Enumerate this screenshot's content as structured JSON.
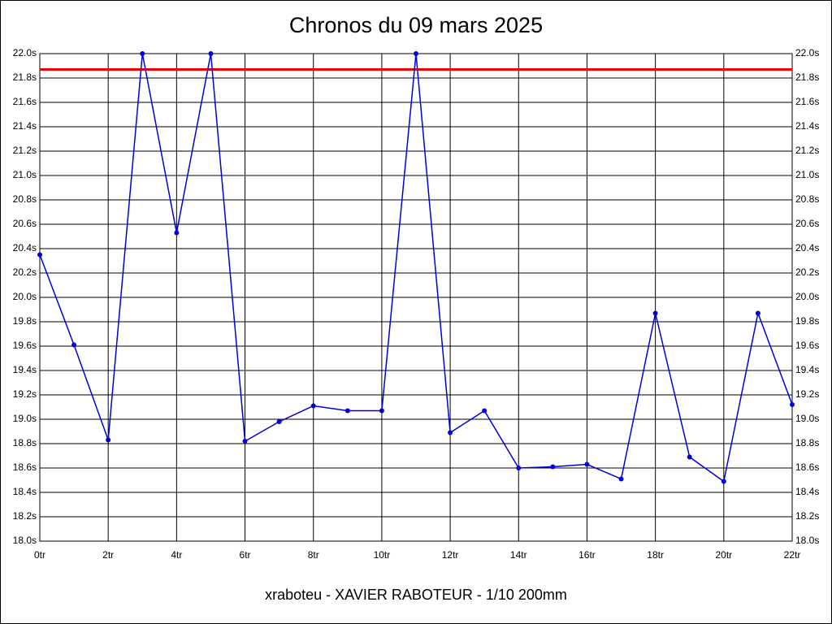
{
  "chart_data": {
    "type": "line",
    "title": "Chronos du 09 mars 2025",
    "caption": "xraboteu - XAVIER RABOTEUR - 1/10 200mm",
    "x": [
      0,
      1,
      2,
      3,
      4,
      5,
      6,
      7,
      8,
      9,
      10,
      11,
      12,
      13,
      14,
      15,
      16,
      17,
      18,
      19,
      20,
      21,
      22
    ],
    "values": [
      20.35,
      19.61,
      18.83,
      22.0,
      20.53,
      22.0,
      18.82,
      18.98,
      19.11,
      19.07,
      19.07,
      22.0,
      18.89,
      19.07,
      18.6,
      18.61,
      18.63,
      18.51,
      19.87,
      18.69,
      18.49,
      19.87,
      19.12
    ],
    "color": "#0000dd",
    "reference_line": {
      "value": 21.87,
      "color": "#ee0000"
    },
    "xlim": [
      0,
      22
    ],
    "xticks": [
      {
        "value": 0,
        "label": "0tr"
      },
      {
        "value": 2,
        "label": "2tr"
      },
      {
        "value": 4,
        "label": "4tr"
      },
      {
        "value": 6,
        "label": "6tr"
      },
      {
        "value": 8,
        "label": "8tr"
      },
      {
        "value": 10,
        "label": "10tr"
      },
      {
        "value": 12,
        "label": "12tr"
      },
      {
        "value": 14,
        "label": "14tr"
      },
      {
        "value": 16,
        "label": "16tr"
      },
      {
        "value": 18,
        "label": "18tr"
      },
      {
        "value": 20,
        "label": "20tr"
      },
      {
        "value": 22,
        "label": "22tr"
      }
    ],
    "ylim": [
      18.0,
      22.0
    ],
    "yticks": [
      {
        "value": 18.0,
        "label": "18.0s"
      },
      {
        "value": 18.2,
        "label": "18.2s"
      },
      {
        "value": 18.4,
        "label": "18.4s"
      },
      {
        "value": 18.6,
        "label": "18.6s"
      },
      {
        "value": 18.8,
        "label": "18.8s"
      },
      {
        "value": 19.0,
        "label": "19.0s"
      },
      {
        "value": 19.2,
        "label": "19.2s"
      },
      {
        "value": 19.4,
        "label": "19.4s"
      },
      {
        "value": 19.6,
        "label": "19.6s"
      },
      {
        "value": 19.8,
        "label": "19.8s"
      },
      {
        "value": 20.0,
        "label": "20.0s"
      },
      {
        "value": 20.2,
        "label": "20.2s"
      },
      {
        "value": 20.4,
        "label": "20.4s"
      },
      {
        "value": 20.6,
        "label": "20.6s"
      },
      {
        "value": 20.8,
        "label": "20.8s"
      },
      {
        "value": 21.0,
        "label": "21.0s"
      },
      {
        "value": 21.2,
        "label": "21.2s"
      },
      {
        "value": 21.4,
        "label": "21.4s"
      },
      {
        "value": 21.6,
        "label": "21.6s"
      },
      {
        "value": 21.8,
        "label": "21.8s"
      },
      {
        "value": 22.0,
        "label": "22.0s"
      }
    ],
    "grid": true
  }
}
